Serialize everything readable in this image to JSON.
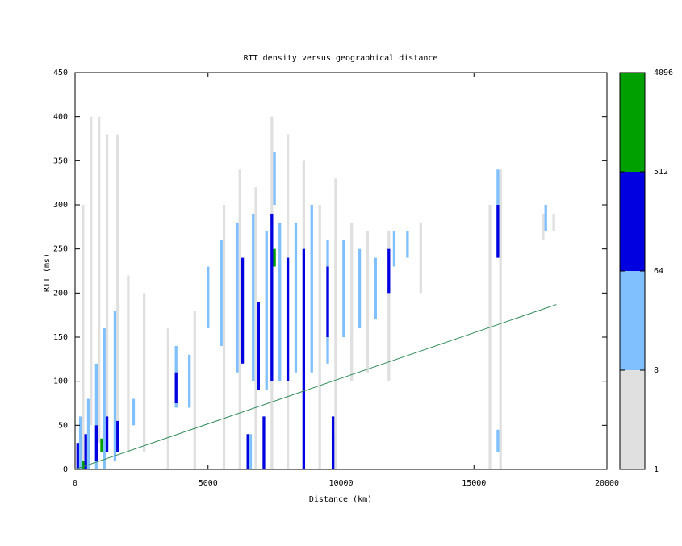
{
  "chart_data": {
    "type": "heatmap",
    "title": "RTT density versus geographical distance",
    "x_label": "Distance (km)",
    "y_label": "RTT (ms)",
    "xlim": [
      0,
      20000
    ],
    "ylim": [
      0,
      450
    ],
    "xticks": [
      0,
      5000,
      10000,
      15000,
      20000
    ],
    "yticks": [
      0,
      50,
      100,
      150,
      200,
      250,
      300,
      350,
      400,
      450
    ],
    "strip_width": 100,
    "strips": {
      "x": [
        300,
        600,
        900,
        1200,
        1600,
        2000,
        2600,
        3500,
        4500,
        5600,
        6200,
        6800,
        7400,
        8000,
        8600,
        9200,
        9800,
        10400,
        11000,
        11800,
        13000,
        15600,
        16000,
        17600,
        18000,
        200,
        500,
        800,
        1100,
        1500,
        2200,
        3800,
        4300,
        5000,
        5500,
        6100,
        6700,
        7200,
        7700,
        8300,
        8900,
        9500,
        10100,
        10700,
        11300,
        12000,
        12500,
        15900,
        17700,
        7500,
        6600,
        9700,
        15900,
        100,
        400,
        800,
        1200,
        1600,
        3800,
        6300,
        6900,
        7400,
        8000,
        8600,
        9500,
        9700,
        11800,
        15900,
        6500,
        7100,
        1000,
        7500,
        300
      ],
      "y_low": [
        0,
        50,
        30,
        50,
        30,
        20,
        20,
        0,
        0,
        0,
        0,
        0,
        0,
        0,
        0,
        0,
        0,
        100,
        110,
        100,
        200,
        0,
        0,
        260,
        270,
        0,
        0,
        0,
        0,
        10,
        50,
        70,
        70,
        160,
        140,
        110,
        100,
        90,
        100,
        110,
        110,
        120,
        150,
        160,
        170,
        230,
        240,
        240,
        270,
        300,
        0,
        0,
        20,
        0,
        0,
        10,
        20,
        20,
        75,
        120,
        90,
        100,
        100,
        0,
        150,
        0,
        200,
        240,
        0,
        0,
        20,
        230,
        0
      ],
      "y_high": [
        300,
        400,
        400,
        380,
        380,
        220,
        200,
        160,
        180,
        300,
        340,
        320,
        400,
        380,
        350,
        300,
        330,
        280,
        270,
        270,
        280,
        300,
        340,
        290,
        290,
        60,
        80,
        120,
        160,
        180,
        80,
        140,
        130,
        230,
        260,
        280,
        290,
        270,
        280,
        280,
        300,
        260,
        260,
        250,
        240,
        270,
        270,
        340,
        300,
        360,
        40,
        40,
        45,
        30,
        40,
        50,
        60,
        55,
        110,
        240,
        190,
        290,
        240,
        250,
        230,
        60,
        250,
        300,
        40,
        60,
        35,
        250,
        10
      ],
      "count": [
        4,
        4,
        4,
        4,
        4,
        4,
        4,
        4,
        4,
        4,
        4,
        4,
        4,
        4,
        4,
        4,
        4,
        4,
        4,
        4,
        4,
        4,
        4,
        4,
        4,
        30,
        30,
        30,
        30,
        30,
        30,
        30,
        30,
        30,
        30,
        30,
        30,
        30,
        30,
        30,
        30,
        30,
        30,
        30,
        30,
        30,
        30,
        30,
        30,
        30,
        30,
        30,
        30,
        200,
        200,
        200,
        200,
        200,
        200,
        200,
        200,
        200,
        200,
        200,
        200,
        200,
        200,
        200,
        200,
        200,
        1000,
        1000,
        1000
      ]
    },
    "reference_line": {
      "x": [
        0,
        18100
      ],
      "y": [
        0,
        187
      ],
      "color": "#2e8b57"
    },
    "colorbar": {
      "scale": "log",
      "ticks": [
        1,
        8,
        64,
        512,
        4096
      ],
      "colors": [
        "#e0e0e0",
        "#80c0ff",
        "#0000e0",
        "#00a000"
      ]
    }
  }
}
